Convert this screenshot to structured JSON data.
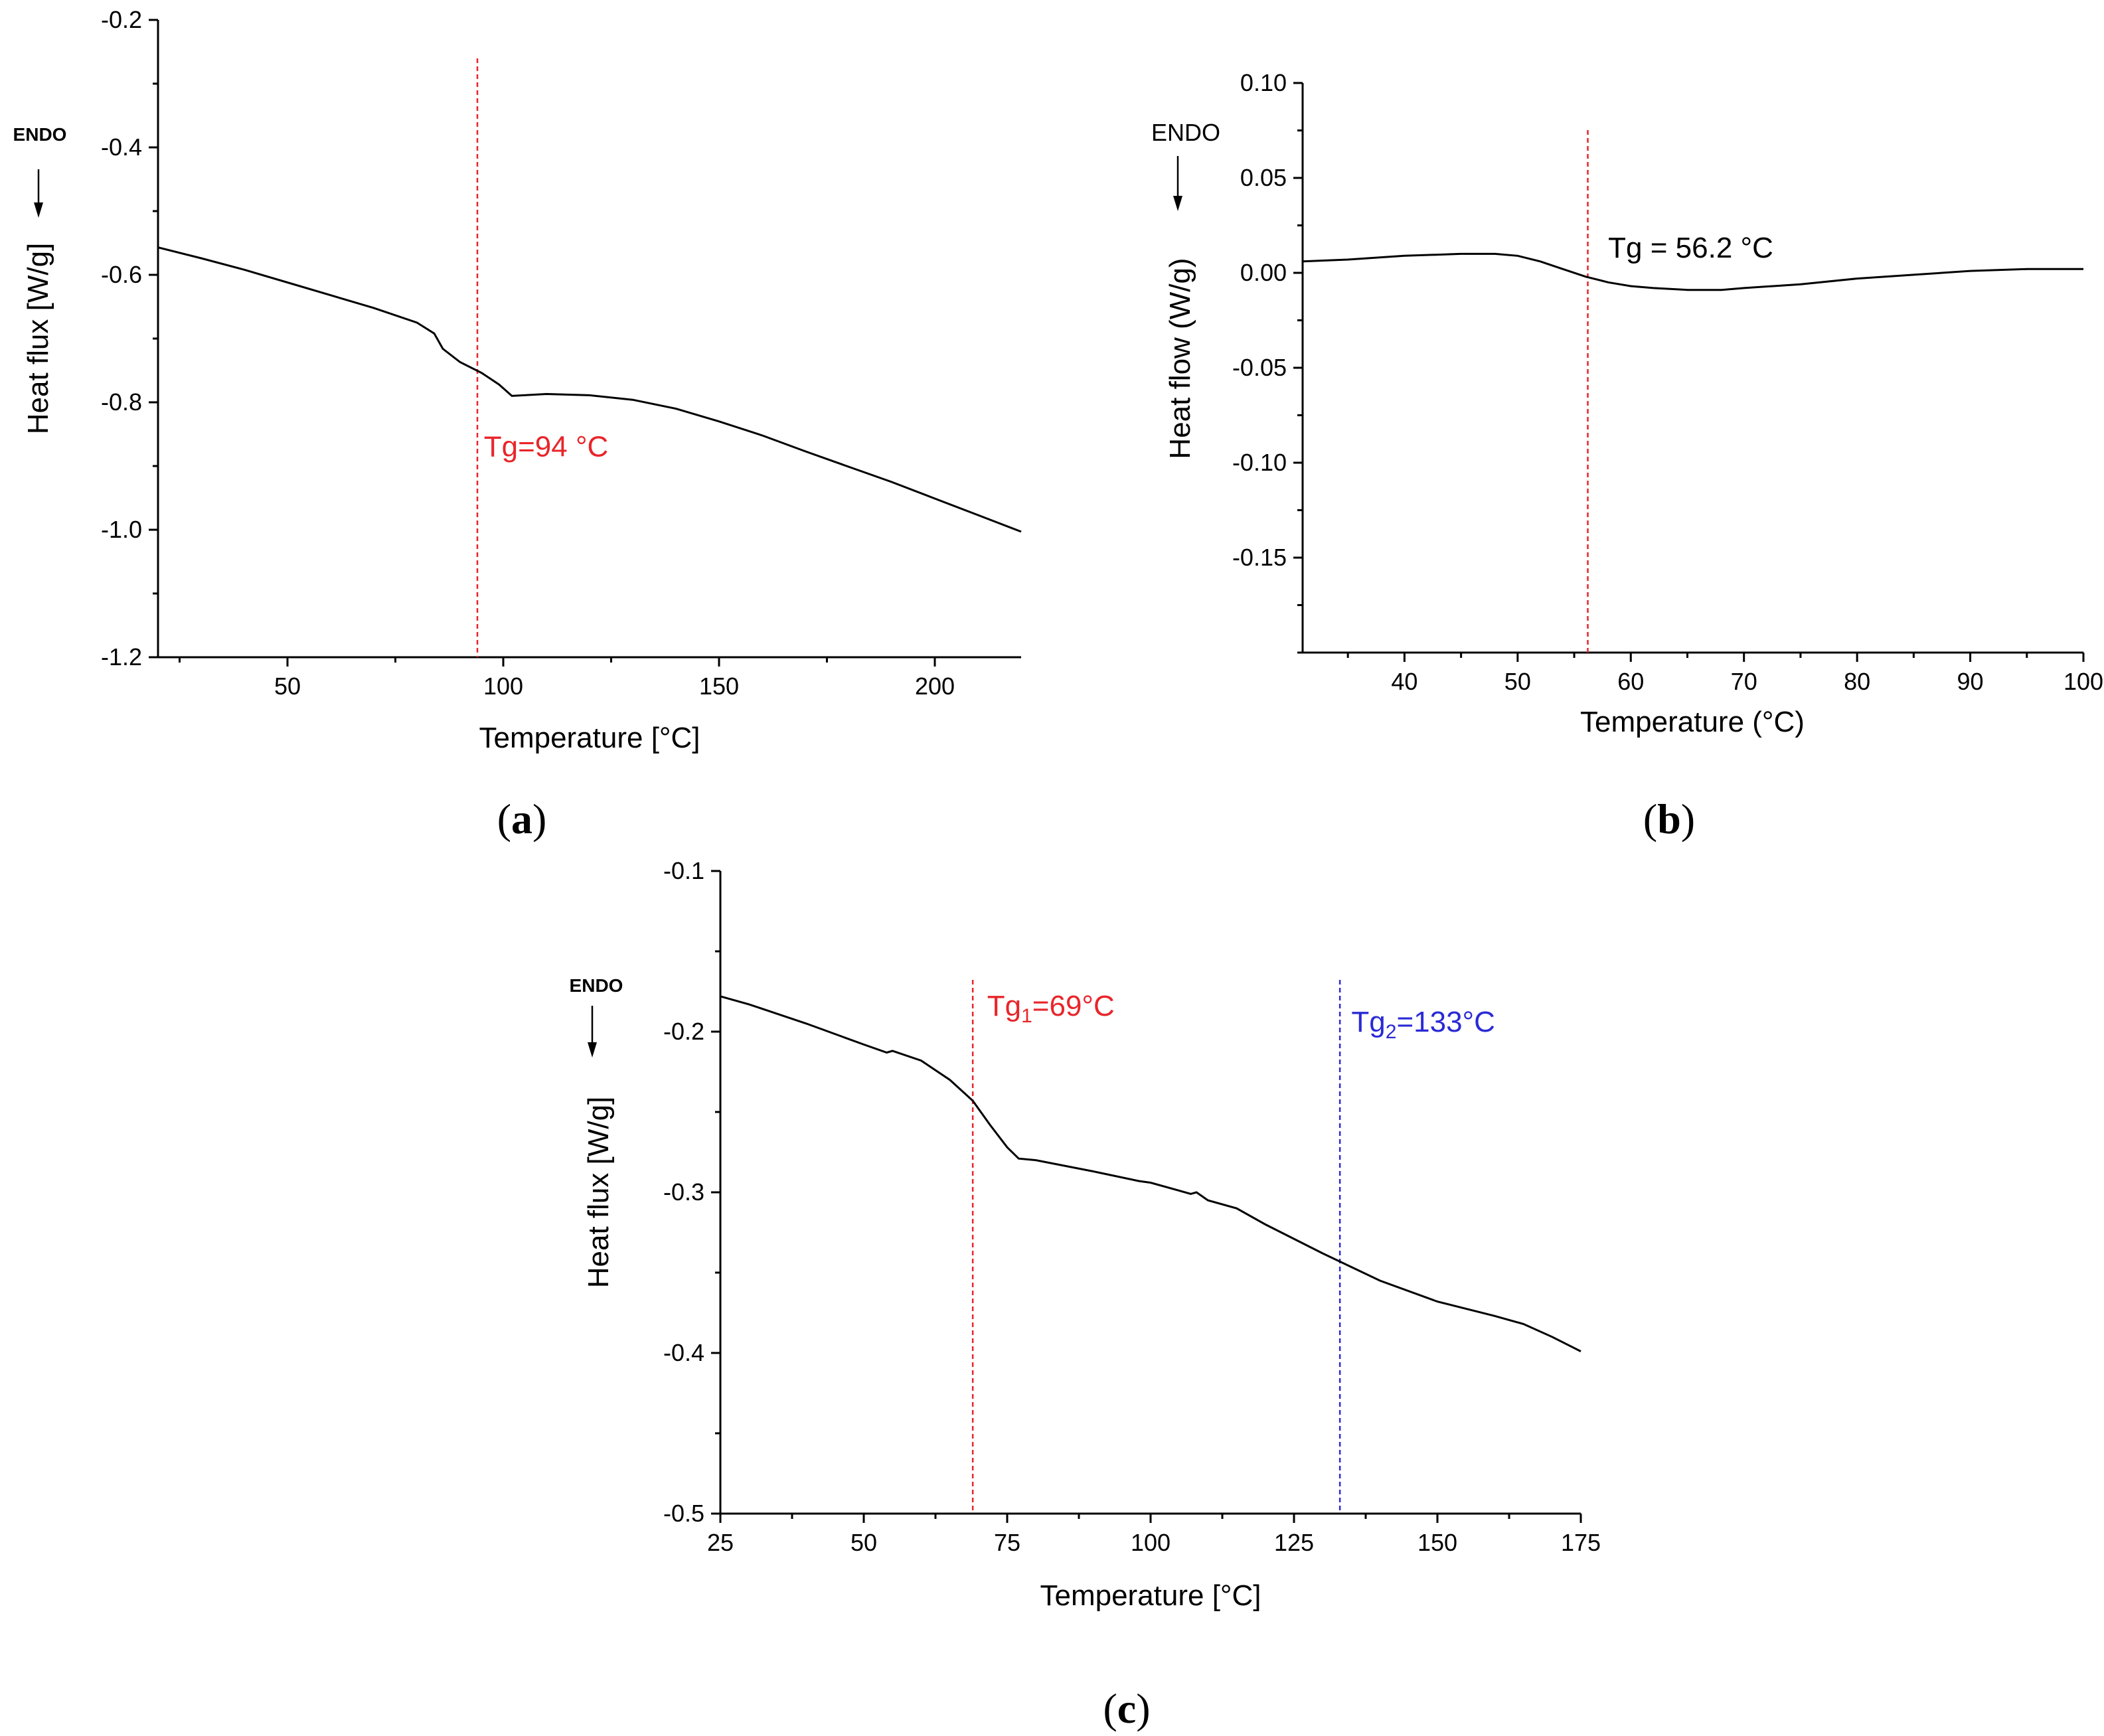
{
  "panels": {
    "a": {
      "label": "a",
      "endo_label": "ENDO"
    },
    "b": {
      "label": "b",
      "endo_label": "ENDO"
    },
    "c": {
      "label": "c",
      "endo_label": "ENDO"
    }
  },
  "colors": {
    "curve": "#000000",
    "red": "#e8252a",
    "blue": "#2a2ad6"
  },
  "chart_data": [
    {
      "id": "a",
      "type": "line",
      "title": "",
      "xlabel": "Temperature [°C]",
      "ylabel": "Heat flux [W/g]",
      "xlim": [
        20,
        220
      ],
      "ylim": [
        -1.2,
        -0.2
      ],
      "xticks": [
        50,
        100,
        150,
        200
      ],
      "xtick_labels": [
        "50",
        "100",
        "150",
        "200"
      ],
      "yticks": [
        -1.2,
        -1.0,
        -0.8,
        -0.6,
        -0.4,
        -0.2
      ],
      "ytick_labels": [
        "-1.2",
        "-1.0",
        "-0.8",
        "-0.6",
        "-0.4",
        "-0.2"
      ],
      "series": [
        {
          "name": "DSC curve",
          "x": [
            20,
            30,
            40,
            50,
            60,
            70,
            80,
            84,
            86,
            90,
            95,
            99,
            102,
            110,
            120,
            130,
            140,
            150,
            160,
            170,
            180,
            190,
            200,
            210,
            220
          ],
          "y": [
            -0.557,
            -0.574,
            -0.592,
            -0.612,
            -0.632,
            -0.652,
            -0.675,
            -0.692,
            -0.716,
            -0.737,
            -0.754,
            -0.772,
            -0.79,
            -0.787,
            -0.789,
            -0.796,
            -0.81,
            -0.83,
            -0.852,
            -0.877,
            -0.901,
            -0.925,
            -0.951,
            -0.977,
            -1.003
          ]
        }
      ],
      "markers": [
        {
          "x": 94,
          "label": "Tg=94 °C",
          "color": "red",
          "label_x": 95.5,
          "label_y": -0.885
        }
      ]
    },
    {
      "id": "b",
      "type": "line",
      "title": "",
      "xlabel": "Temperature (°C)",
      "ylabel": "Heat flow (W/g)",
      "xlim": [
        31,
        100
      ],
      "ylim": [
        -0.2,
        0.1
      ],
      "xticks": [
        40,
        50,
        60,
        70,
        80,
        90,
        100
      ],
      "xtick_labels": [
        "40",
        "50",
        "60",
        "70",
        "80",
        "90",
        "100"
      ],
      "yticks": [
        -0.15,
        -0.1,
        -0.05,
        0.0,
        0.05,
        0.1
      ],
      "ytick_labels": [
        "-0.15",
        "-0.10",
        "-0.05",
        "0.00",
        "0.05",
        "0.10"
      ],
      "series": [
        {
          "name": "DSC curve",
          "x": [
            31,
            35,
            40,
            45,
            48,
            50,
            52,
            54,
            56,
            58,
            60,
            62,
            65,
            68,
            70,
            75,
            80,
            85,
            90,
            95,
            100
          ],
          "y": [
            0.006,
            0.007,
            0.009,
            0.01,
            0.01,
            0.009,
            0.006,
            0.002,
            -0.002,
            -0.005,
            -0.007,
            -0.008,
            -0.009,
            -0.009,
            -0.008,
            -0.006,
            -0.003,
            -0.001,
            0.001,
            0.002,
            0.002
          ]
        }
      ],
      "markers": [
        {
          "x": 56.2,
          "label": "Tg = 56.2 °C",
          "color": "curve",
          "line_color": "red",
          "label_x": 58.0,
          "label_y": 0.008
        }
      ]
    },
    {
      "id": "c",
      "type": "line",
      "title": "",
      "xlabel": "Temperature [°C]",
      "ylabel": "Heat flux [W/g]",
      "xlim": [
        25,
        175
      ],
      "ylim": [
        -0.5,
        -0.1
      ],
      "xticks": [
        25,
        50,
        75,
        100,
        125,
        150,
        175
      ],
      "xtick_labels": [
        "25",
        "50",
        "75",
        "100",
        "125",
        "150",
        "175"
      ],
      "yticks": [
        -0.5,
        -0.4,
        -0.3,
        -0.2,
        -0.1
      ],
      "ytick_labels": [
        "-0.5",
        "-0.4",
        "-0.3",
        "-0.2",
        "-0.1"
      ],
      "series": [
        {
          "name": "DSC curve",
          "x": [
            25,
            30,
            40,
            50,
            54,
            55,
            60,
            65,
            69,
            72,
            75,
            77,
            80,
            90,
            98,
            100,
            107,
            108,
            110,
            115,
            120,
            130,
            140,
            150,
            160,
            165,
            170,
            175
          ],
          "y": [
            -0.178,
            -0.183,
            -0.195,
            -0.208,
            -0.213,
            -0.212,
            -0.218,
            -0.23,
            -0.243,
            -0.258,
            -0.272,
            -0.279,
            -0.28,
            -0.287,
            -0.293,
            -0.294,
            -0.301,
            -0.3,
            -0.305,
            -0.31,
            -0.32,
            -0.338,
            -0.355,
            -0.368,
            -0.377,
            -0.382,
            -0.39,
            -0.399
          ]
        }
      ],
      "markers": [
        {
          "x": 69,
          "label": "Tg",
          "sub": "1",
          "suffix": "=69°C",
          "color": "red",
          "label_x": 71.5,
          "label_y": -0.19
        },
        {
          "x": 133,
          "label": "Tg",
          "sub": "2",
          "suffix": "=133°C",
          "color": "blue",
          "label_x": 135,
          "label_y": -0.2
        }
      ]
    }
  ]
}
